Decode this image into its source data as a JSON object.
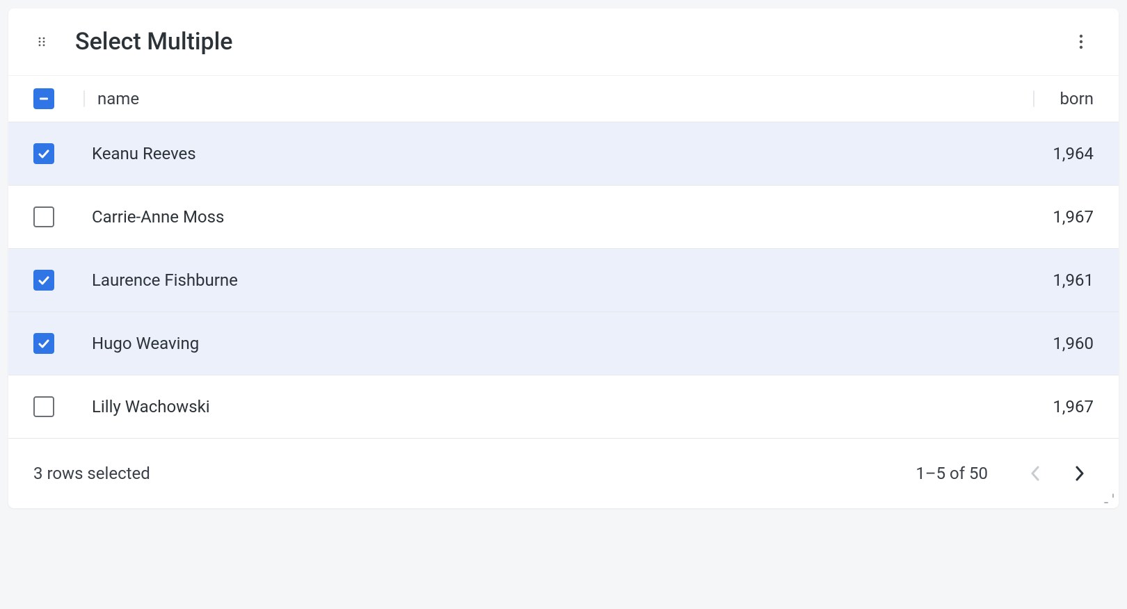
{
  "card": {
    "title": "Select Multiple"
  },
  "table": {
    "columns": {
      "name": "name",
      "born": "born"
    },
    "header_checkbox_state": "indeterminate",
    "rows": [
      {
        "name": "Keanu Reeves",
        "born": "1,964",
        "selected": true
      },
      {
        "name": "Carrie-Anne Moss",
        "born": "1,967",
        "selected": false
      },
      {
        "name": "Laurence Fishburne",
        "born": "1,961",
        "selected": true
      },
      {
        "name": "Hugo Weaving",
        "born": "1,960",
        "selected": true
      },
      {
        "name": "Lilly Wachowski",
        "born": "1,967",
        "selected": false
      }
    ]
  },
  "footer": {
    "selected_text": "3 rows selected",
    "pagination_text": "1–5 of 50",
    "prev_enabled": false,
    "next_enabled": true
  },
  "colors": {
    "checkbox_checked_bg": "#2f75e6",
    "checkbox_unchecked_border": "#6b6f76",
    "row_selected_bg": "#ebf0fb",
    "card_bg": "#ffffff",
    "body_bg": "#f5f6f8",
    "border": "#e6e8eb",
    "text": "#2c3338"
  }
}
